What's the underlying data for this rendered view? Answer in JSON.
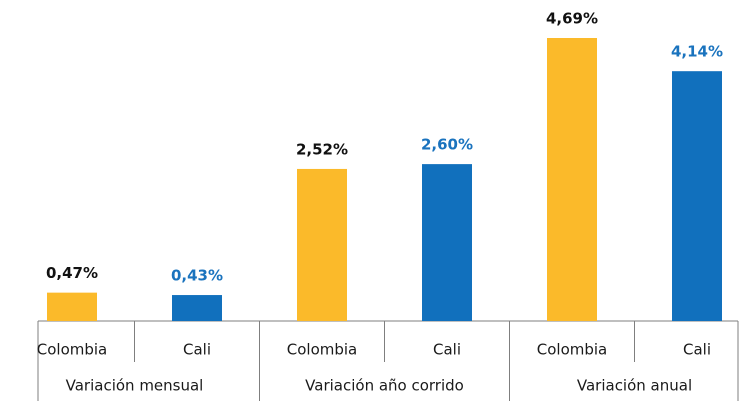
{
  "chart_data": {
    "type": "bar",
    "categories": [
      "Variación mensual",
      "Variación año corrido",
      "Variación anual"
    ],
    "series": [
      {
        "name": "Colombia",
        "color": "#fbba2a",
        "value_label_color": "#111111",
        "values": [
          0.47,
          2.52,
          4.69
        ],
        "value_labels": [
          "0,47%",
          "2,52%",
          "4,69%"
        ]
      },
      {
        "name": "Cali",
        "color": "#1170bd",
        "value_label_color": "#1a73be",
        "values": [
          0.43,
          2.6,
          4.14
        ],
        "value_labels": [
          "0,43%",
          "2,60%",
          "4,14%"
        ]
      }
    ]
  }
}
